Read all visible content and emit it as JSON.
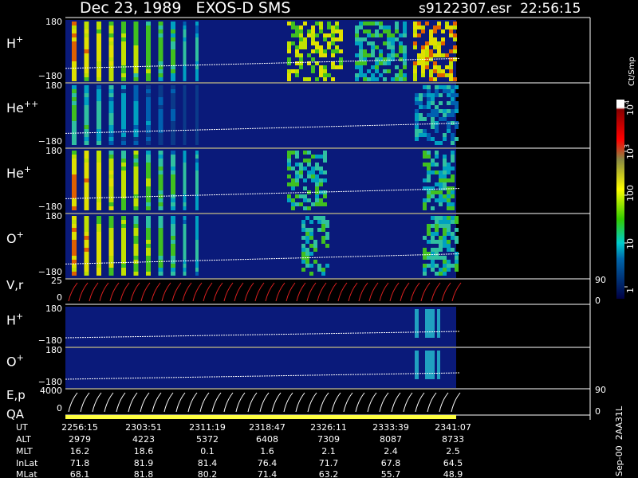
{
  "header": {
    "title": "Dec 23, 1989   EXOS-D SMS",
    "file": "s9122307.esr  22:56:15"
  },
  "panels": [
    {
      "label": "H",
      "sup": "+",
      "ticks": [
        "180",
        "−180"
      ]
    },
    {
      "label": "He",
      "sup": "++",
      "ticks": [
        "180",
        "−180"
      ]
    },
    {
      "label": "He",
      "sup": "+",
      "ticks": [
        "180",
        "−180"
      ]
    },
    {
      "label": "O",
      "sup": "+",
      "ticks": [
        "180",
        "−180"
      ]
    },
    {
      "label": "H",
      "sup": "+",
      "ticks": [
        "180",
        "−180"
      ]
    },
    {
      "label": "O",
      "sup": "+",
      "ticks": [
        "180",
        "−180"
      ]
    }
  ],
  "vr": {
    "label": "V,r",
    "left_ticks": [
      "25",
      "0"
    ],
    "right_ticks": [
      "90",
      "0"
    ]
  },
  "ep": {
    "label": "E,p",
    "left_ticks": [
      "4000",
      "0"
    ],
    "right_ticks": [
      "90",
      "0"
    ]
  },
  "qa": "QA",
  "colorbar": {
    "label": "Ct/Smp",
    "ticks": [
      {
        "base": "10",
        "exp": "4"
      },
      {
        "base": "10",
        "exp": "3"
      },
      "100",
      "10",
      "1"
    ]
  },
  "table": {
    "rows": [
      [
        "UT",
        "2256:15",
        "2303:51",
        "2311:19",
        "2318:47",
        "2326:11",
        "2333:39",
        "2341:07"
      ],
      [
        "ALT",
        "2979",
        "4223",
        "5372",
        "6408",
        "7309",
        "8087",
        "8733"
      ],
      [
        "MLT",
        "16.2",
        "18.6",
        "0.1",
        "1.6",
        "2.1",
        "2.4",
        "2.5"
      ],
      [
        "InLat",
        "71.8",
        "81.9",
        "81.4",
        "76.4",
        "71.7",
        "67.8",
        "64.5"
      ],
      [
        "MLat",
        "68.1",
        "81.8",
        "80.2",
        "71.4",
        "63.2",
        "55.7",
        "48.9"
      ]
    ]
  },
  "footer": "Sep-00  2AA31L"
}
